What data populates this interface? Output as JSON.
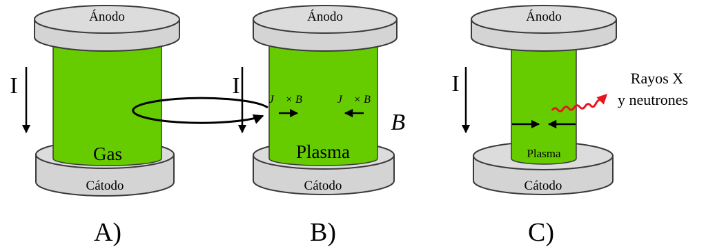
{
  "colors": {
    "gas_fill": "#66cc00",
    "electrode_fill": "#d4d4d4",
    "electrode_stroke": "#3a3a3a",
    "radiation": "#e8141e",
    "ink": "#000000"
  },
  "panels": [
    {
      "id": "A",
      "caption": "A)",
      "anode_label": "Ánodo",
      "cathode_label": "Cátodo",
      "current_label": "I",
      "column_label": "Gas"
    },
    {
      "id": "B",
      "caption": "B)",
      "anode_label": "Ánodo",
      "cathode_label": "Cátodo",
      "current_label": "I",
      "column_label": "Plasma",
      "force_label_left": "J⃗ × B⃗",
      "force_label_right": "J⃗ × B⃗",
      "magnetic_field_label": "B⃗",
      "field_icon": "circular-field-loop"
    },
    {
      "id": "C",
      "caption": "C)",
      "anode_label": "Ánodo",
      "cathode_label": "Cátodo",
      "current_label": "I",
      "column_label": "Plasma",
      "emission_label_line1": "Rayos X",
      "emission_label_line2": "y neutrones",
      "emission_icon": "wavy-arrow"
    }
  ]
}
